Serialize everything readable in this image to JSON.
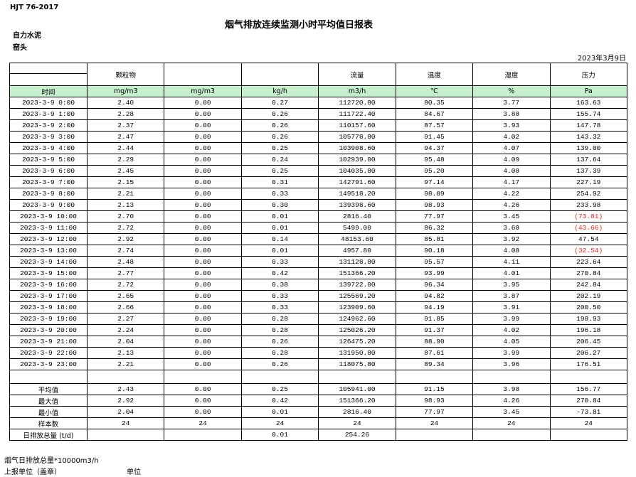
{
  "header": {
    "standard": "HJT  76-2017",
    "company": "自力水泥",
    "location": "窑头",
    "title": "烟气排放连续监测小时平均值日报表",
    "date": "2023年3月9日"
  },
  "table": {
    "header_row1": [
      null,
      "颗粒物",
      null,
      null,
      "流量",
      "温度",
      "湿度",
      "压力"
    ],
    "header_row2": [
      "时间",
      "mg/m3",
      "mg/m3",
      "kg/h",
      "m3/h",
      "℃",
      "%",
      "Pa"
    ],
    "rows": [
      [
        "2023-3-9 0:00",
        "2.40",
        "0.00",
        "0.27",
        "112720.80",
        "80.35",
        "3.77",
        "163.63"
      ],
      [
        "2023-3-9 1:00",
        "2.28",
        "0.00",
        "0.26",
        "111722.40",
        "84.67",
        "3.88",
        "155.74"
      ],
      [
        "2023-3-9 2:00",
        "2.37",
        "0.00",
        "0.26",
        "110157.60",
        "87.57",
        "3.93",
        "147.78"
      ],
      [
        "2023-3-9 3:00",
        "2.47",
        "0.00",
        "0.26",
        "105778.80",
        "91.45",
        "4.02",
        "143.32"
      ],
      [
        "2023-3-9 4:00",
        "2.44",
        "0.00",
        "0.25",
        "103908.60",
        "94.37",
        "4.07",
        "139.00"
      ],
      [
        "2023-3-9 5:00",
        "2.29",
        "0.00",
        "0.24",
        "102939.00",
        "95.48",
        "4.09",
        "137.64"
      ],
      [
        "2023-3-9 6:00",
        "2.45",
        "0.00",
        "0.25",
        "104035.80",
        "95.20",
        "4.08",
        "137.39"
      ],
      [
        "2023-3-9 7:00",
        "2.15",
        "0.00",
        "0.31",
        "142791.60",
        "97.14",
        "4.17",
        "227.19"
      ],
      [
        "2023-3-9 8:00",
        "2.21",
        "0.00",
        "0.33",
        "149518.20",
        "98.09",
        "4.22",
        "254.92"
      ],
      [
        "2023-3-9 9:00",
        "2.13",
        "0.00",
        "0.30",
        "139398.60",
        "98.93",
        "4.26",
        "233.98"
      ],
      [
        "2023-3-9 10:00",
        "2.70",
        "0.00",
        "0.01",
        "2816.40",
        "77.97",
        "3.45",
        "(73.81)"
      ],
      [
        "2023-3-9 11:00",
        "2.72",
        "0.00",
        "0.01",
        "5499.00",
        "86.32",
        "3.68",
        "(43.66)"
      ],
      [
        "2023-3-9 12:00",
        "2.92",
        "0.00",
        "0.14",
        "48153.60",
        "85.81",
        "3.92",
        "47.54"
      ],
      [
        "2023-3-9 13:00",
        "2.74",
        "0.00",
        "0.01",
        "4957.80",
        "90.18",
        "4.08",
        "(32.54)"
      ],
      [
        "2023-3-9 14:00",
        "2.48",
        "0.00",
        "0.33",
        "131128.80",
        "95.57",
        "4.11",
        "223.64"
      ],
      [
        "2023-3-9 15:00",
        "2.77",
        "0.00",
        "0.42",
        "151366.20",
        "93.99",
        "4.01",
        "270.84"
      ],
      [
        "2023-3-9 16:00",
        "2.72",
        "0.00",
        "0.38",
        "139722.00",
        "96.34",
        "3.95",
        "242.84"
      ],
      [
        "2023-3-9 17:00",
        "2.65",
        "0.00",
        "0.33",
        "125569.20",
        "94.82",
        "3.87",
        "202.19"
      ],
      [
        "2023-3-9 18:00",
        "2.66",
        "0.00",
        "0.33",
        "123909.60",
        "94.19",
        "3.91",
        "200.50"
      ],
      [
        "2023-3-9 19:00",
        "2.27",
        "0.00",
        "0.28",
        "124962.60",
        "91.85",
        "3.99",
        "198.93"
      ],
      [
        "2023-3-9 20:00",
        "2.24",
        "0.00",
        "0.28",
        "125026.20",
        "91.37",
        "4.02",
        "196.18"
      ],
      [
        "2023-3-9 21:00",
        "2.04",
        "0.00",
        "0.26",
        "126475.20",
        "88.90",
        "4.05",
        "206.45"
      ],
      [
        "2023-3-9 22:00",
        "2.13",
        "0.00",
        "0.28",
        "131950.80",
        "87.61",
        "3.99",
        "206.27"
      ],
      [
        "2023-3-9 23:00",
        "2.21",
        "0.00",
        "0.26",
        "118075.80",
        "89.34",
        "3.96",
        "176.51"
      ]
    ],
    "summary": [
      [
        "平均值",
        "2.43",
        "0.00",
        "0.25",
        "105941.00",
        "91.15",
        "3.98",
        "156.77"
      ],
      [
        "最大值",
        "2.92",
        "0.00",
        "0.42",
        "151366.20",
        "98.93",
        "4.26",
        "270.84"
      ],
      [
        "最小值",
        "2.04",
        "0.00",
        "0.01",
        "2816.40",
        "77.97",
        "3.45",
        "-73.81"
      ],
      [
        "样本数",
        "24",
        "24",
        "24",
        "24",
        "24",
        "24",
        "24"
      ],
      [
        "日排放总量 (t/d)",
        null,
        null,
        "0.01",
        "254.26",
        null,
        null,
        null
      ]
    ]
  },
  "footer": {
    "note": "烟气日排放总量*10000m3/h",
    "unit_seal": "上报单位（盖章）",
    "unit": "单位"
  }
}
